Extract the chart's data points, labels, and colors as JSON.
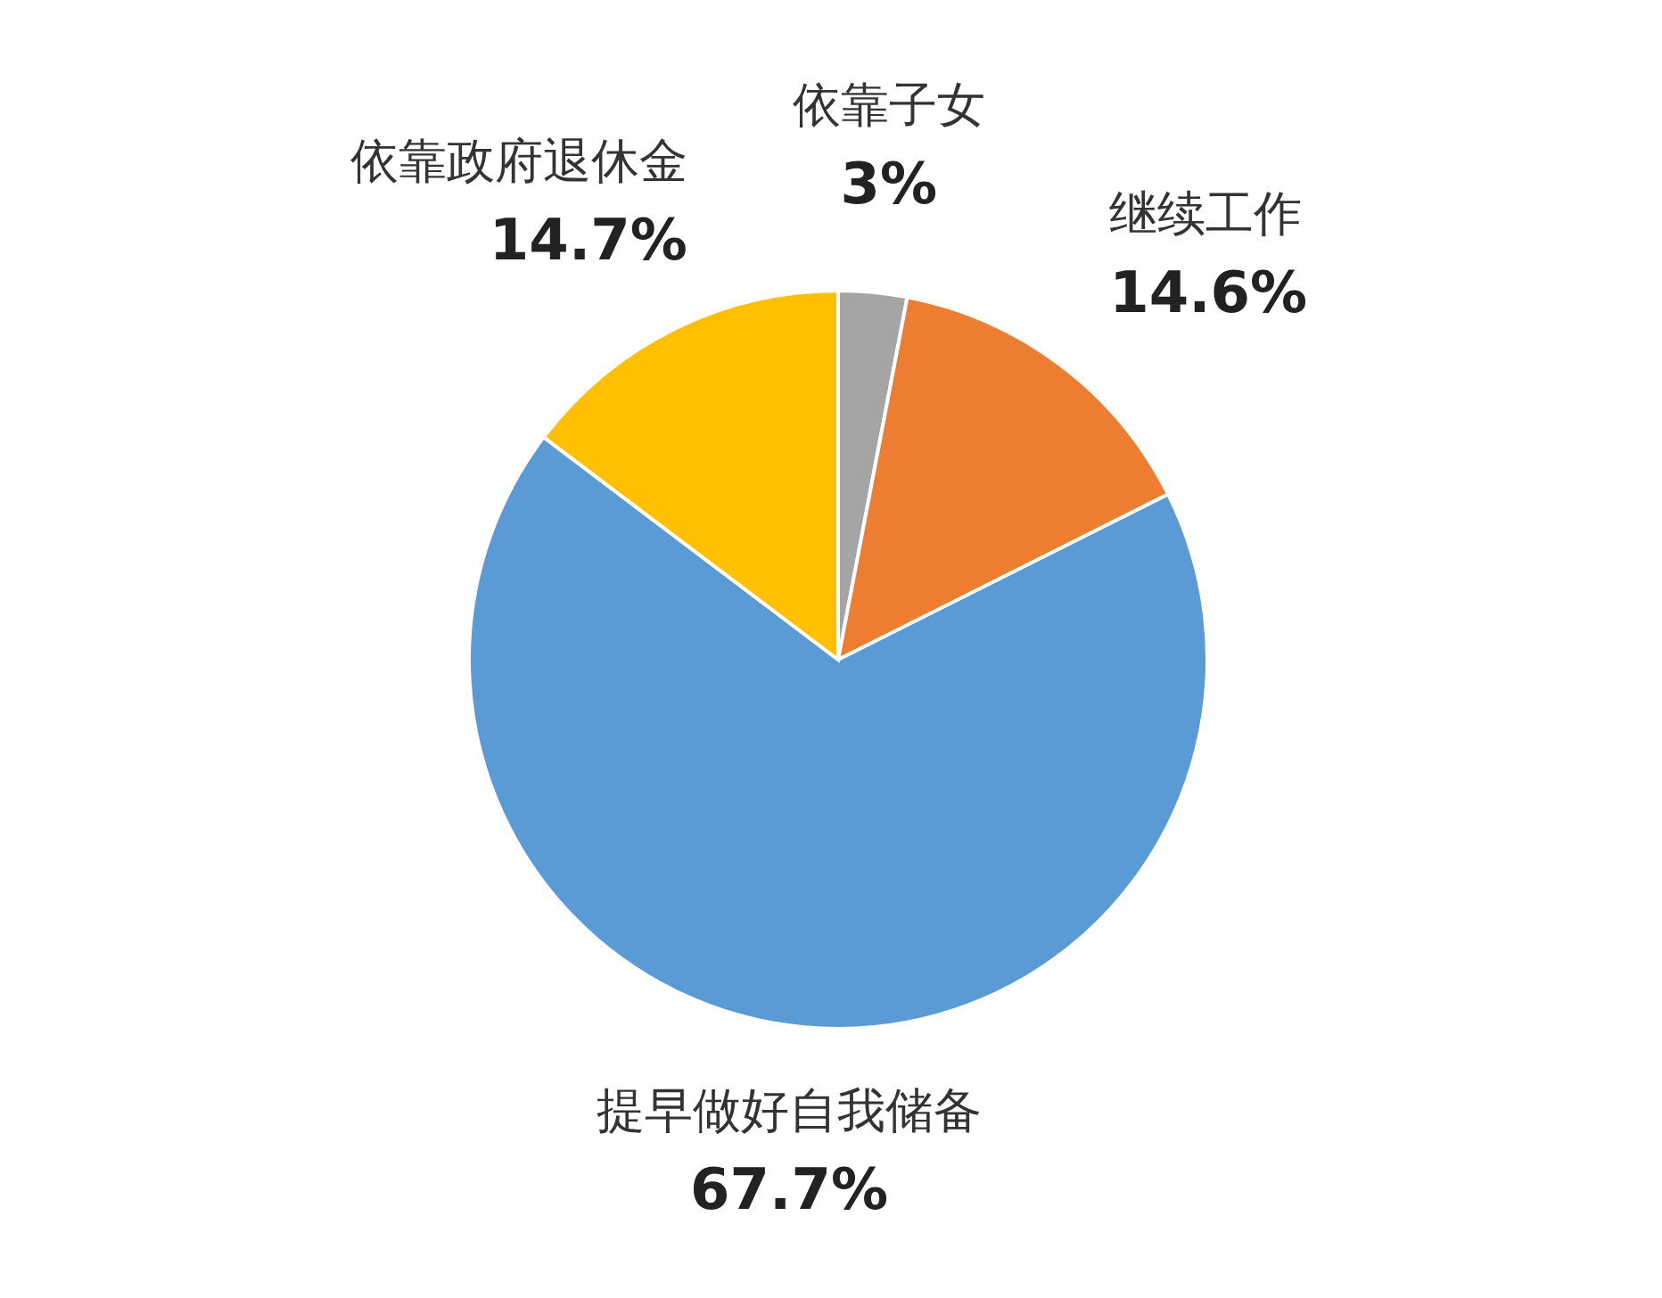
{
  "chart_data": {
    "type": "pie",
    "categories": [
      "依靠子女",
      "继续工作",
      "提早做好自我储备",
      "依靠政府退休金"
    ],
    "values": [
      3,
      14.6,
      67.7,
      14.7
    ],
    "colors": [
      "#a5a5a5",
      "#ed7d31",
      "#5b9bd5",
      "#ffc000"
    ],
    "value_labels": [
      "3%",
      "14.6%",
      "67.7%",
      "14.7%"
    ]
  }
}
